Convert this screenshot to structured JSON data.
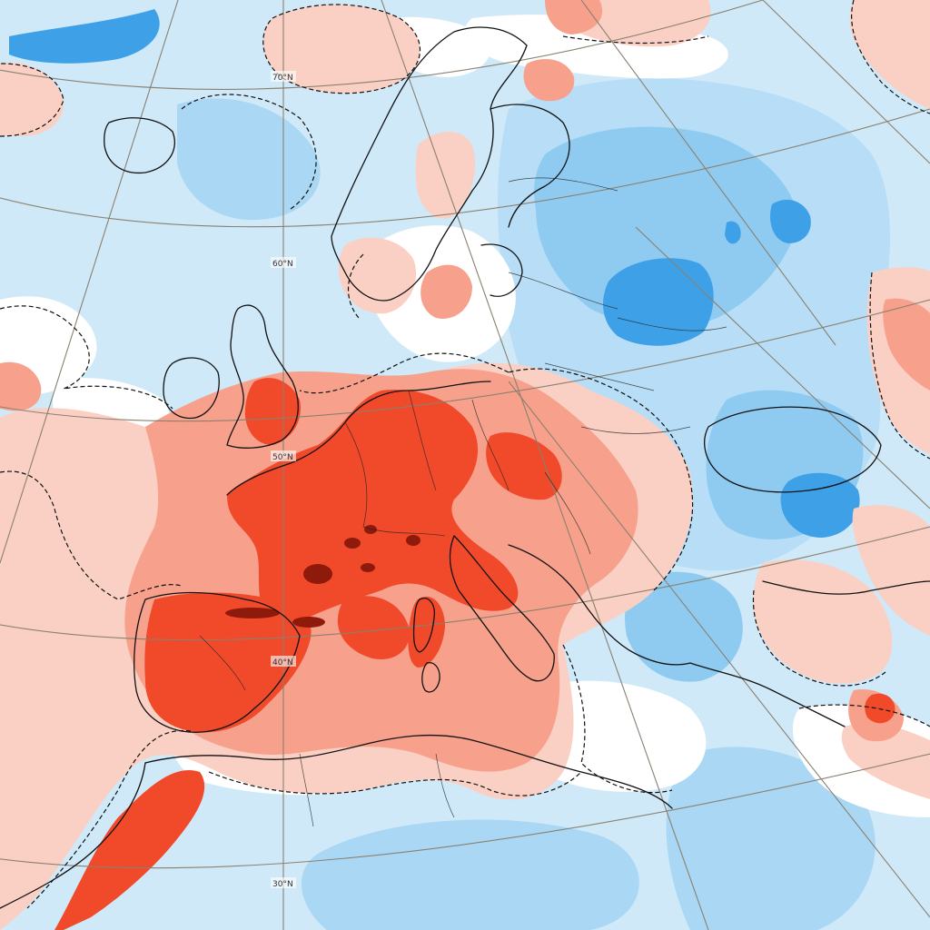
{
  "map": {
    "latitude_labels": [
      "70°N",
      "60°N",
      "50°N",
      "40°N",
      "30°N"
    ],
    "colors": {
      "ocean_neutral": "#cfe9f8",
      "strong_warm": "#f04a2a",
      "extreme_warm": "#8e1a0c",
      "moderate_warm": "#f7a18c",
      "light_warm": "#fbd0c4",
      "neutral": "#ffffff",
      "light_cold": "#cfe9f8",
      "moderate_cold": "#9fd2f3",
      "strong_cold": "#3ea0e6",
      "coastline": "#111111",
      "graticule": "#8a8070"
    }
  }
}
